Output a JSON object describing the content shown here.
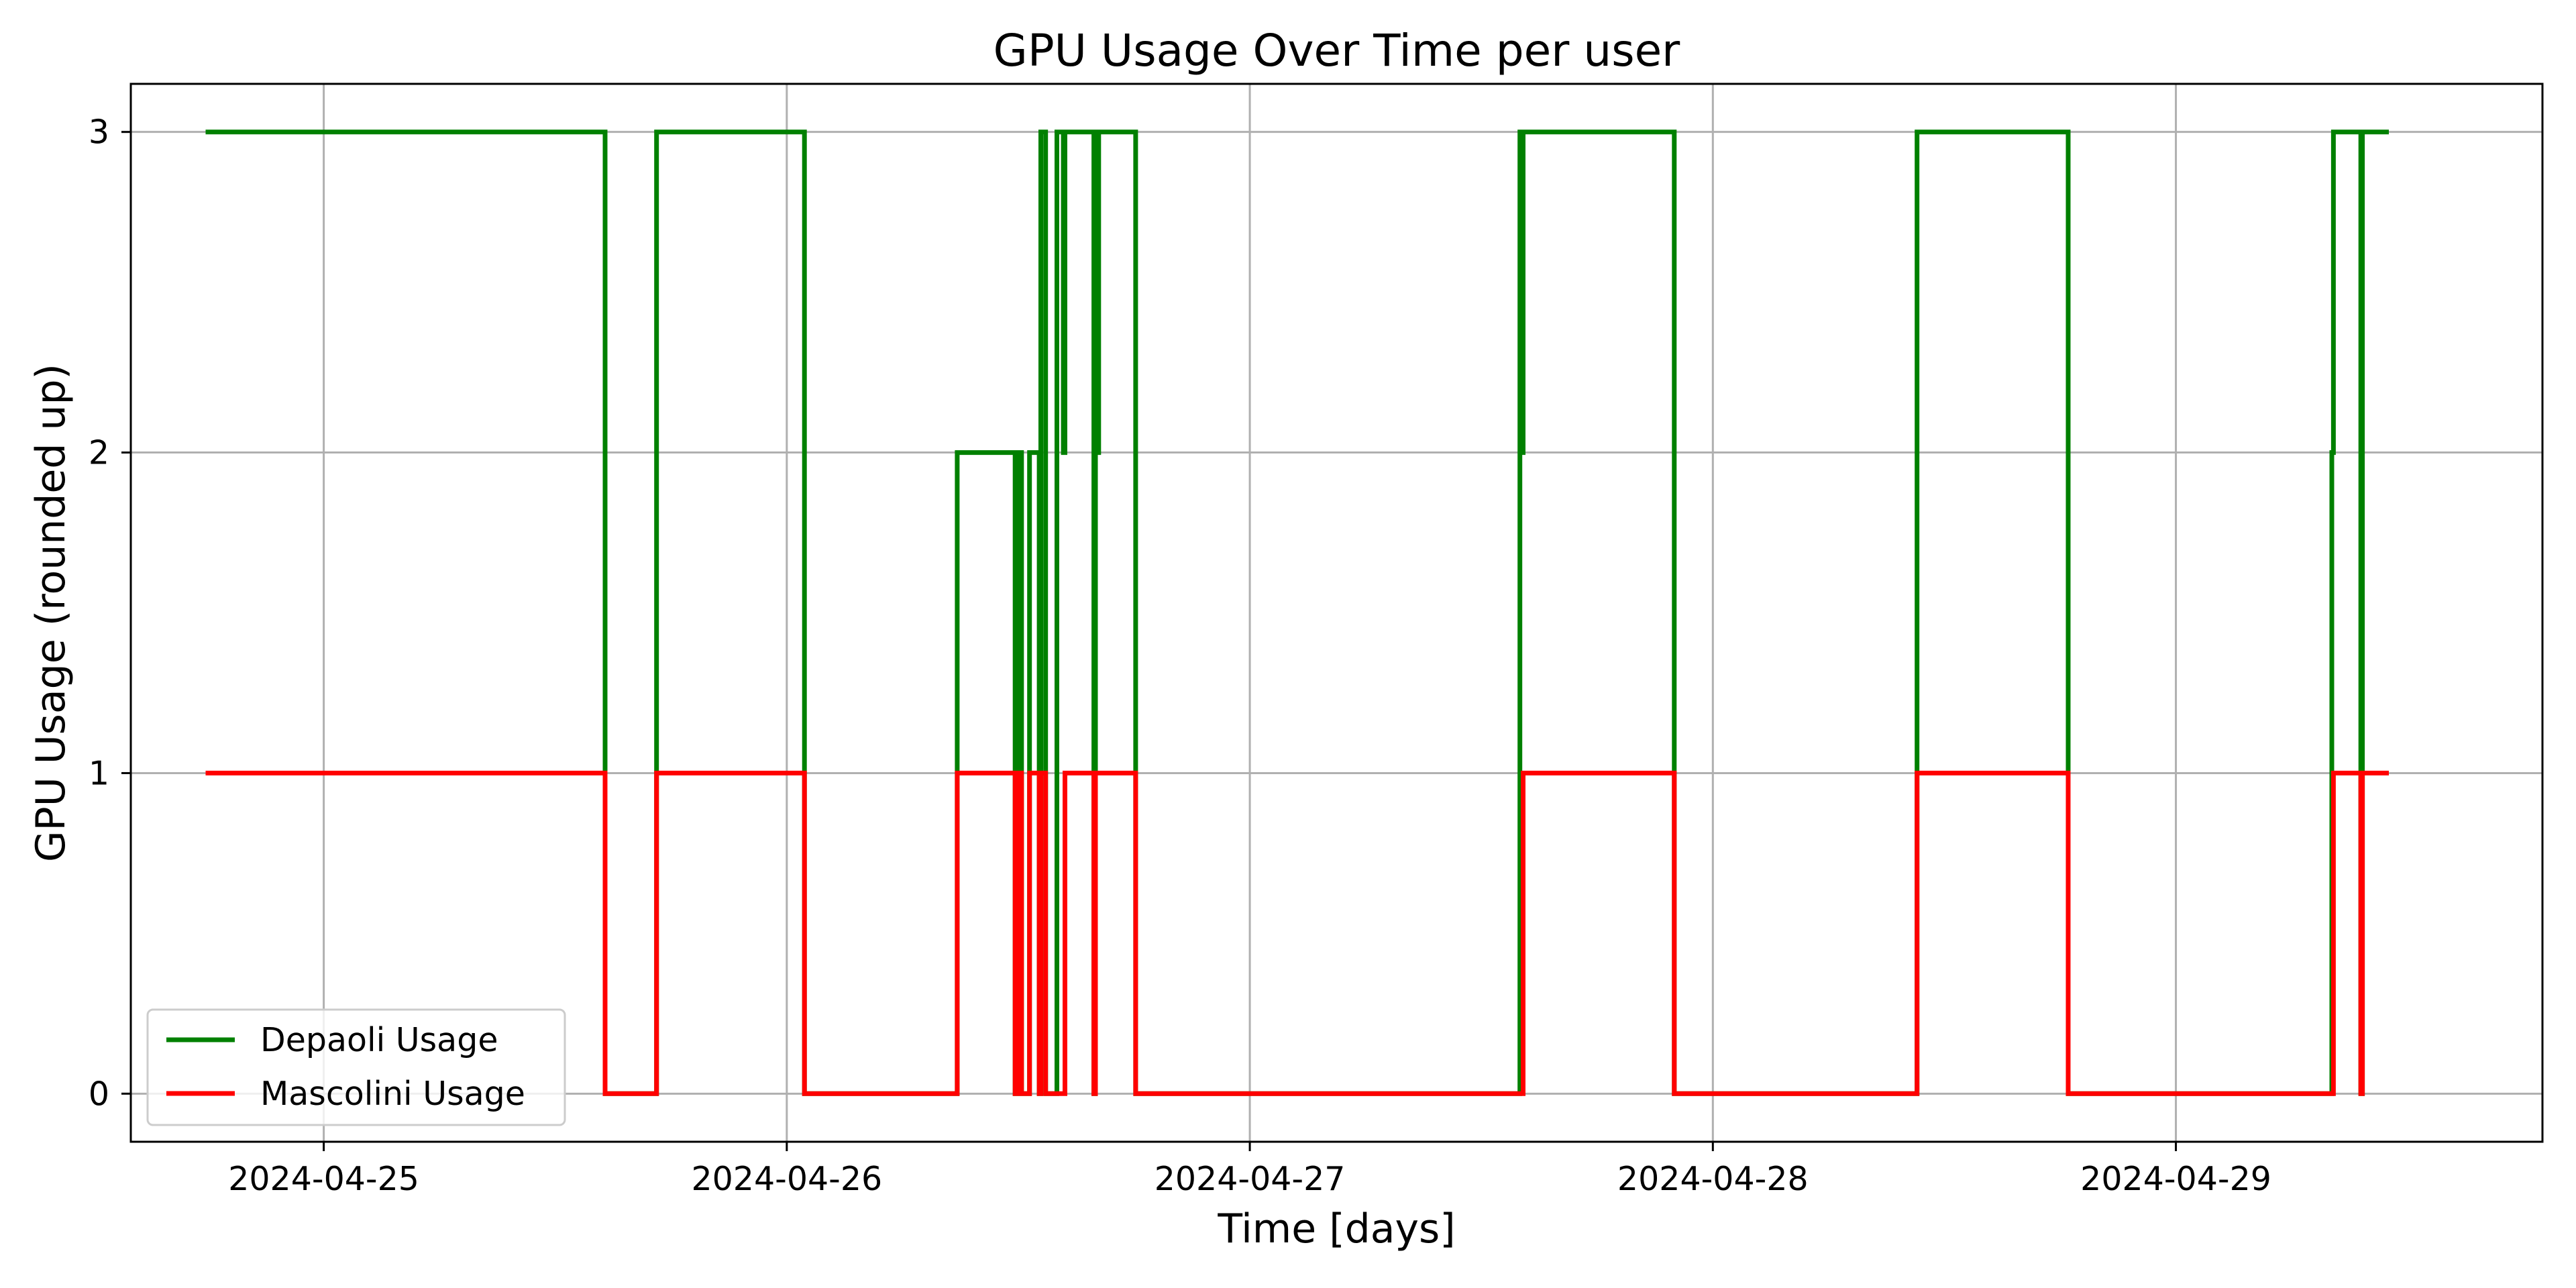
{
  "chart_data": {
    "type": "line",
    "title": "GPU Usage Over Time per user",
    "xlabel": "Time [days]",
    "ylabel": "GPU Usage (rounded up)",
    "x_type": "datetime",
    "step": "post",
    "xlim": [
      "2024-04-24T14:00",
      "2024-04-29T19:00"
    ],
    "ylim": [
      -0.15,
      3.15
    ],
    "x_ticks": [
      "2024-04-25",
      "2024-04-26",
      "2024-04-27",
      "2024-04-28",
      "2024-04-29"
    ],
    "y_ticks": [
      0,
      1,
      2,
      3
    ],
    "grid": true,
    "legend": "lower-left",
    "series": [
      {
        "name": "Depaoli Usage",
        "color": "#008000",
        "points": [
          [
            "2024-04-24T18:00",
            3
          ],
          [
            "2024-04-25T14:35",
            0
          ],
          [
            "2024-04-25T17:15",
            3
          ],
          [
            "2024-04-26T00:55",
            0
          ],
          [
            "2024-04-26T08:50",
            2
          ],
          [
            "2024-04-26T11:50",
            0
          ],
          [
            "2024-04-26T12:00",
            2
          ],
          [
            "2024-04-26T12:10",
            0
          ],
          [
            "2024-04-26T12:35",
            2
          ],
          [
            "2024-04-26T13:05",
            0
          ],
          [
            "2024-04-26T13:10",
            3
          ],
          [
            "2024-04-26T13:25",
            0
          ],
          [
            "2024-04-26T14:00",
            3
          ],
          [
            "2024-04-26T14:20",
            2
          ],
          [
            "2024-04-26T14:25",
            3
          ],
          [
            "2024-04-26T15:55",
            0
          ],
          [
            "2024-04-26T16:00",
            3
          ],
          [
            "2024-04-26T16:05",
            2
          ],
          [
            "2024-04-26T16:10",
            3
          ],
          [
            "2024-04-26T18:05",
            0
          ],
          [
            "2024-04-27T14:00",
            3
          ],
          [
            "2024-04-27T14:05",
            2
          ],
          [
            "2024-04-27T14:10",
            3
          ],
          [
            "2024-04-27T22:00",
            0
          ],
          [
            "2024-04-28T10:35",
            3
          ],
          [
            "2024-04-28T18:25",
            0
          ],
          [
            "2024-04-29T08:05",
            2
          ],
          [
            "2024-04-29T08:10",
            3
          ],
          [
            "2024-04-29T09:35",
            0
          ],
          [
            "2024-04-29T09:40",
            3
          ],
          [
            "2024-04-29T10:55",
            3
          ]
        ]
      },
      {
        "name": "Mascolini Usage",
        "color": "#ff0000",
        "points": [
          [
            "2024-04-24T18:00",
            1
          ],
          [
            "2024-04-25T14:35",
            0
          ],
          [
            "2024-04-25T17:15",
            1
          ],
          [
            "2024-04-26T00:55",
            0
          ],
          [
            "2024-04-26T08:50",
            1
          ],
          [
            "2024-04-26T11:50",
            0
          ],
          [
            "2024-04-26T12:00",
            1
          ],
          [
            "2024-04-26T12:10",
            0
          ],
          [
            "2024-04-26T12:35",
            1
          ],
          [
            "2024-04-26T13:05",
            0
          ],
          [
            "2024-04-26T13:10",
            1
          ],
          [
            "2024-04-26T13:25",
            0
          ],
          [
            "2024-04-26T14:25",
            1
          ],
          [
            "2024-04-26T15:55",
            0
          ],
          [
            "2024-04-26T16:00",
            1
          ],
          [
            "2024-04-26T18:05",
            0
          ],
          [
            "2024-04-27T14:10",
            1
          ],
          [
            "2024-04-27T22:00",
            0
          ],
          [
            "2024-04-28T10:35",
            1
          ],
          [
            "2024-04-28T18:25",
            0
          ],
          [
            "2024-04-29T08:10",
            1
          ],
          [
            "2024-04-29T09:35",
            0
          ],
          [
            "2024-04-29T09:40",
            1
          ],
          [
            "2024-04-29T10:55",
            1
          ]
        ]
      }
    ]
  }
}
